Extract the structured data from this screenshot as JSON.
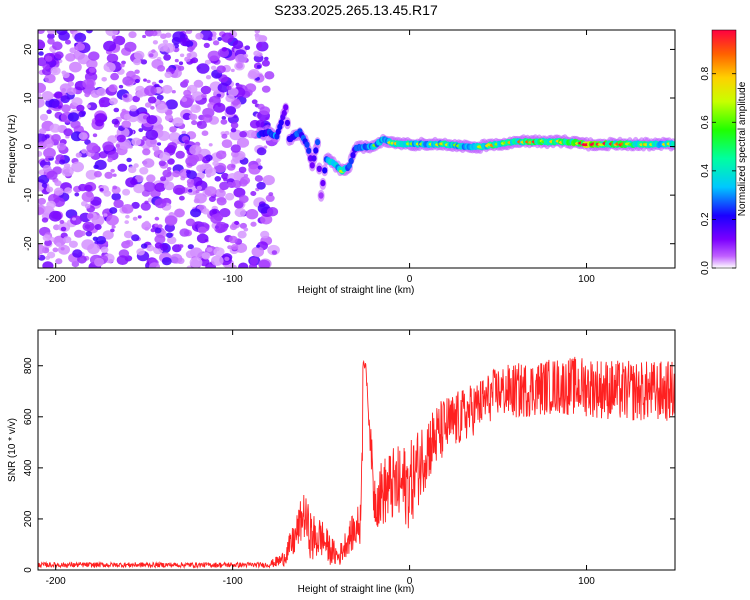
{
  "chart_data": [
    {
      "type": "heatmap",
      "title": "S233.2025.265.13.45.R17",
      "xlabel": "Height of straight line (km)",
      "ylabel": "Frequency (Hz)",
      "xlim": [
        -210,
        150
      ],
      "ylim": [
        -25,
        24
      ],
      "xticks": [
        -200,
        -100,
        0,
        100
      ],
      "xtick_labels": [
        "-200",
        "-100",
        "0",
        "100"
      ],
      "yticks": [
        -20,
        -10,
        0,
        10,
        20
      ],
      "ytick_labels": [
        "-20",
        "-10",
        "0",
        "10",
        "20"
      ],
      "colorbar": {
        "label": "Normalized spectral amplitude",
        "range": [
          0.0,
          0.98
        ],
        "ticks": [
          0.0,
          0.2,
          0.4,
          0.6,
          0.8
        ],
        "tick_labels": [
          "0.0",
          "0.2",
          "0.4",
          "0.6",
          "0.8"
        ],
        "colors": [
          "#ffffff",
          "#c060ff",
          "#7b00ff",
          "#1a00ff",
          "#00c8ff",
          "#00ffa0",
          "#20ff00",
          "#c8ff00",
          "#ffd000",
          "#ff6000",
          "#ff0040"
        ]
      },
      "noise_region_x": [
        -210,
        -82
      ],
      "ridge": [
        {
          "x": -85,
          "y": 2.5,
          "a": 0.35
        },
        {
          "x": -80,
          "y": 3.0,
          "a": 0.3
        },
        {
          "x": -75,
          "y": 2.0,
          "a": 0.35
        },
        {
          "x": -70,
          "y": 8.0,
          "a": 0.15
        },
        {
          "x": -68,
          "y": 1.5,
          "a": 0.3
        },
        {
          "x": -62,
          "y": 3.0,
          "a": 0.3
        },
        {
          "x": -58,
          "y": 0.5,
          "a": 0.35
        },
        {
          "x": -55,
          "y": -4.0,
          "a": 0.15
        },
        {
          "x": -52,
          "y": 1.0,
          "a": 0.35
        },
        {
          "x": -50,
          "y": -10.0,
          "a": 0.1
        },
        {
          "x": -47,
          "y": -2.5,
          "a": 0.4
        },
        {
          "x": -43,
          "y": -3.5,
          "a": 0.45
        },
        {
          "x": -38,
          "y": -5.0,
          "a": 0.5
        },
        {
          "x": -34,
          "y": -4.0,
          "a": 0.35
        },
        {
          "x": -31,
          "y": -0.5,
          "a": 0.3
        },
        {
          "x": -26,
          "y": 0.0,
          "a": 0.4
        },
        {
          "x": -20,
          "y": 0.0,
          "a": 0.45
        },
        {
          "x": -15,
          "y": 1.5,
          "a": 0.4
        },
        {
          "x": -8,
          "y": 0.5,
          "a": 0.55
        },
        {
          "x": 0,
          "y": 0.5,
          "a": 0.5
        },
        {
          "x": 10,
          "y": 0.5,
          "a": 0.45
        },
        {
          "x": 20,
          "y": 0.5,
          "a": 0.5
        },
        {
          "x": 30,
          "y": 0.0,
          "a": 0.45
        },
        {
          "x": 40,
          "y": 0.0,
          "a": 0.5
        },
        {
          "x": 50,
          "y": 0.5,
          "a": 0.55
        },
        {
          "x": 60,
          "y": 1.0,
          "a": 0.55
        },
        {
          "x": 70,
          "y": 1.0,
          "a": 0.6
        },
        {
          "x": 80,
          "y": 1.0,
          "a": 0.55
        },
        {
          "x": 90,
          "y": 1.0,
          "a": 0.6
        },
        {
          "x": 100,
          "y": 0.5,
          "a": 0.85
        },
        {
          "x": 110,
          "y": 0.5,
          "a": 0.65
        },
        {
          "x": 120,
          "y": 0.5,
          "a": 0.6
        },
        {
          "x": 130,
          "y": 0.5,
          "a": 0.55
        },
        {
          "x": 140,
          "y": 0.5,
          "a": 0.5
        },
        {
          "x": 150,
          "y": 0.5,
          "a": 0.5
        }
      ]
    },
    {
      "type": "line",
      "xlabel": "Height of straight line (km)",
      "ylabel": "SNR (10 * v/v)",
      "xlim": [
        -210,
        150
      ],
      "ylim": [
        0,
        940
      ],
      "xticks": [
        -200,
        -100,
        0,
        100
      ],
      "xtick_labels": [
        "-200",
        "-100",
        "0",
        "100"
      ],
      "yticks": [
        0,
        200,
        400,
        600,
        800
      ],
      "ytick_labels": [
        "0",
        "200",
        "400",
        "600",
        "800"
      ],
      "series": [
        {
          "name": "SNR",
          "color": "#ff2020",
          "x": [
            -210,
            -150,
            -100,
            -80,
            -72,
            -65,
            -60,
            -55,
            -50,
            -45,
            -40,
            -35,
            -28,
            -25,
            -20,
            -10,
            0,
            10,
            20,
            30,
            40,
            50,
            60,
            80,
            100,
            120,
            140,
            150
          ],
          "y": [
            20,
            20,
            20,
            20,
            40,
            120,
            220,
            120,
            130,
            80,
            50,
            120,
            180,
            820,
            280,
            330,
            330,
            480,
            560,
            600,
            650,
            700,
            700,
            720,
            720,
            700,
            700,
            700
          ],
          "noise": [
            10,
            10,
            10,
            10,
            30,
            70,
            90,
            100,
            80,
            60,
            40,
            60,
            90,
            0,
            120,
            150,
            170,
            140,
            120,
            110,
            100,
            100,
            110,
            110,
            120,
            120,
            120,
            120
          ]
        }
      ]
    }
  ]
}
